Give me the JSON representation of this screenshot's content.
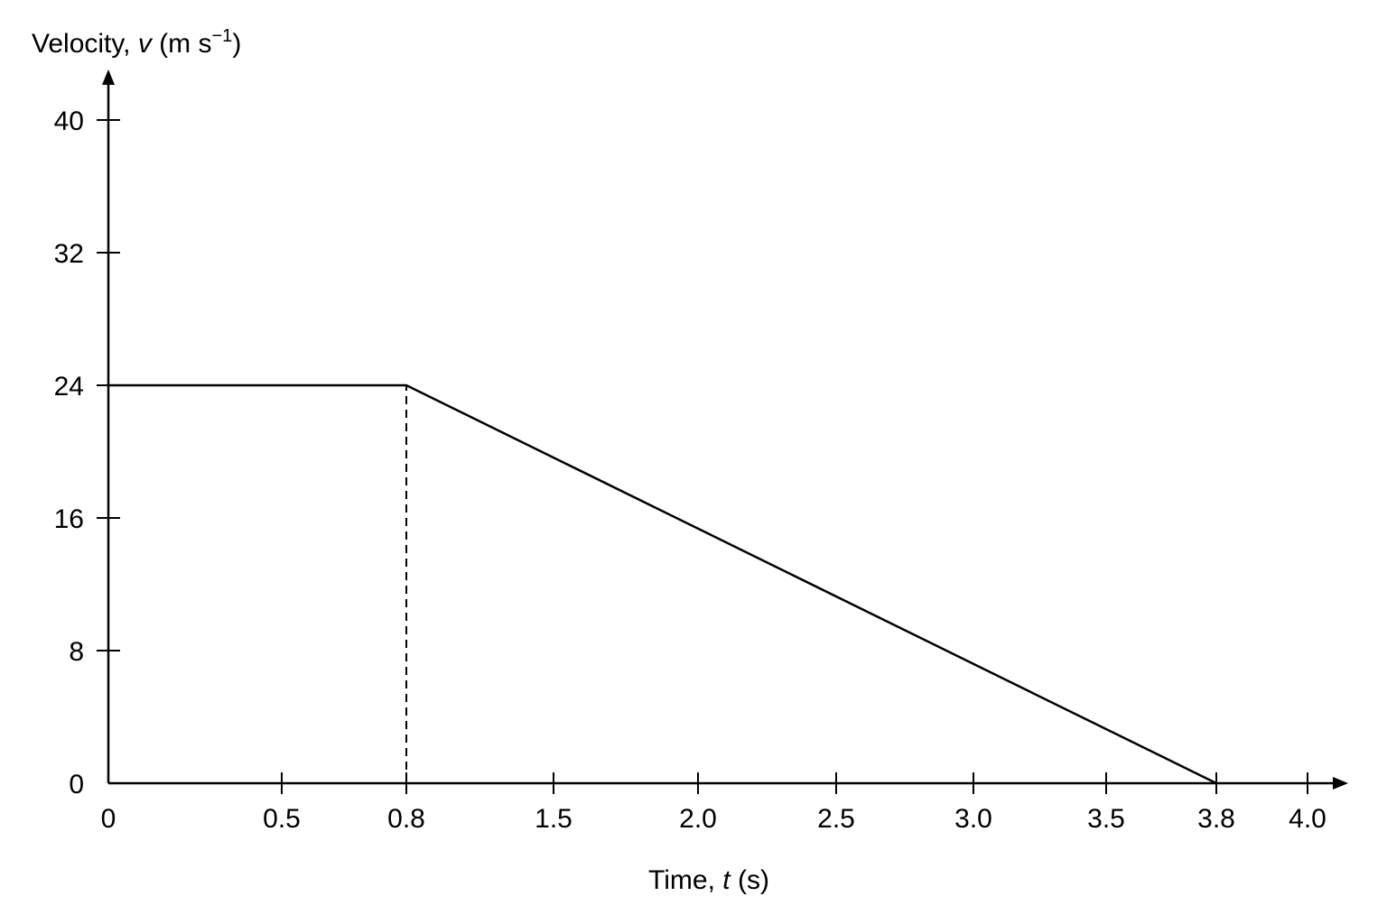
{
  "chart_data": {
    "type": "line",
    "ylabel": {
      "prefix": "Velocity, ",
      "symbol": "v",
      "unit_open": " (m s",
      "unit_sup": "−1",
      "unit_close": ")"
    },
    "xlabel": {
      "prefix": "Time, ",
      "symbol": "t",
      "unit": " (s)"
    },
    "x_ticks": [
      0,
      0.5,
      0.8,
      1.5,
      2.0,
      2.5,
      3.0,
      3.5,
      3.8,
      4.0
    ],
    "x_tick_labels": [
      "0",
      "0.5",
      "0.8",
      "1.5",
      "2.0",
      "2.5",
      "3.0",
      "3.5",
      "3.8",
      "4.0"
    ],
    "y_ticks": [
      0,
      8,
      16,
      24,
      32,
      40
    ],
    "y_tick_labels": [
      "0",
      "8",
      "16",
      "24",
      "32",
      "40"
    ],
    "series": [
      {
        "x": [
          0,
          0.8,
          3.8
        ],
        "y": [
          24,
          24,
          0
        ]
      }
    ],
    "reference_lines": [
      {
        "type": "vertical",
        "x": 0.8,
        "y_from": 0,
        "y_to": 24,
        "style": "dashed"
      }
    ],
    "grid": false,
    "legend": "none"
  }
}
